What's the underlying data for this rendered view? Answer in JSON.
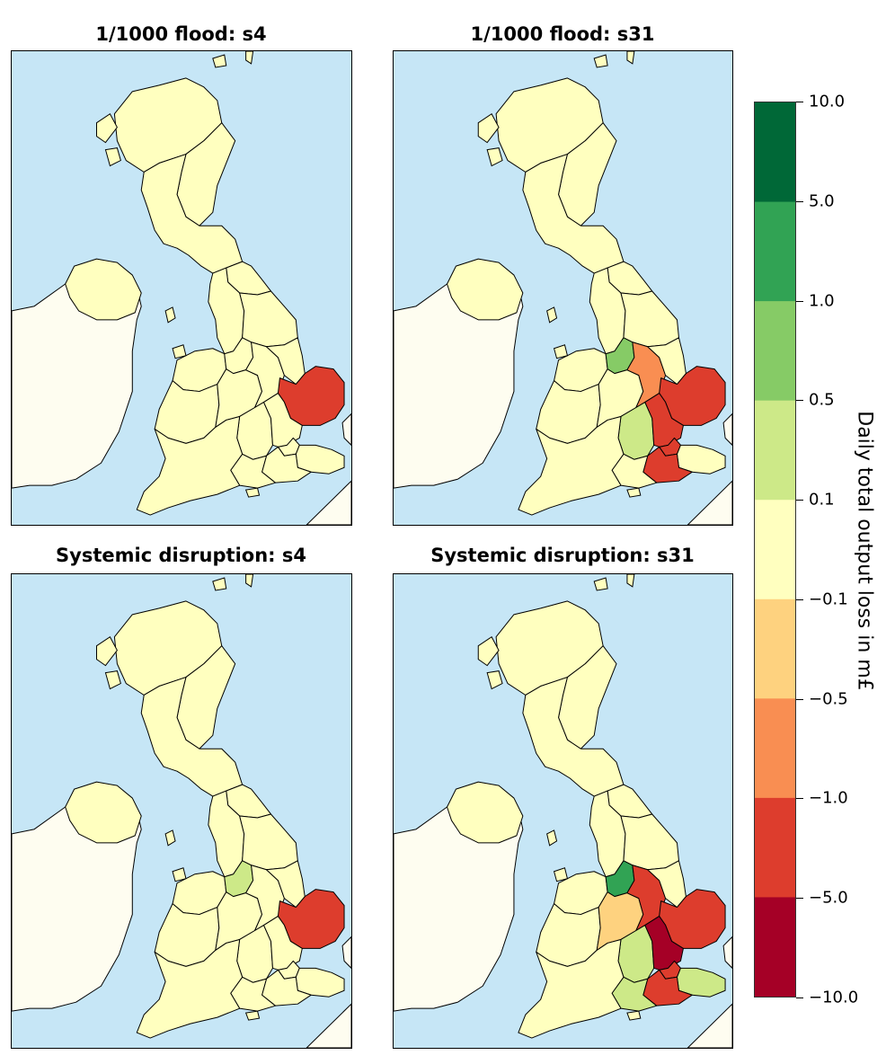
{
  "panels": [
    {
      "title": "1/1000 flood: s4",
      "regions": {
        "scotland-n": "neutral",
        "scotland-e": "neutral",
        "scotland-s": "neutral",
        "north-east": "neutral",
        "north-west": "neutral",
        "yorkshire": "neutral",
        "wales-n": "neutral",
        "cheshire": "neutral",
        "wales-s": "neutral",
        "west-midlands": "neutral",
        "east-midlands": "neutral",
        "lincolnshire": "neutral",
        "east-anglia": "loss-1-5",
        "oxford-bucks": "neutral",
        "hertford": "neutral",
        "london": "neutral",
        "kent": "neutral",
        "surrey-sussex": "neutral",
        "hampshire": "neutral",
        "south-west": "neutral",
        "northern-ireland": "neutral"
      }
    },
    {
      "title": "1/1000 flood: s31",
      "regions": {
        "scotland-n": "neutral",
        "scotland-e": "neutral",
        "scotland-s": "neutral",
        "north-east": "neutral",
        "north-west": "neutral",
        "yorkshire": "neutral",
        "wales-n": "neutral",
        "cheshire": "gain-0.5-1",
        "wales-s": "neutral",
        "west-midlands": "neutral",
        "east-midlands": "loss-0.5-1",
        "lincolnshire": "neutral",
        "east-anglia": "loss-1-5",
        "oxford-bucks": "gain-0.1-0.5",
        "hertford": "loss-1-5",
        "london": "loss-1-5",
        "kent": "neutral",
        "surrey-sussex": "loss-1-5",
        "hampshire": "neutral",
        "south-west": "neutral",
        "northern-ireland": "neutral"
      }
    },
    {
      "title": "Systemic disruption: s4",
      "regions": {
        "scotland-n": "neutral",
        "scotland-e": "neutral",
        "scotland-s": "neutral",
        "north-east": "neutral",
        "north-west": "neutral",
        "yorkshire": "neutral",
        "wales-n": "neutral",
        "cheshire": "gain-0.1-0.5",
        "wales-s": "neutral",
        "west-midlands": "neutral",
        "east-midlands": "neutral",
        "lincolnshire": "neutral",
        "east-anglia": "loss-1-5",
        "oxford-bucks": "neutral",
        "hertford": "neutral",
        "london": "neutral",
        "kent": "neutral",
        "surrey-sussex": "neutral",
        "hampshire": "neutral",
        "south-west": "neutral",
        "northern-ireland": "neutral"
      }
    },
    {
      "title": "Systemic disruption: s31",
      "regions": {
        "scotland-n": "neutral",
        "scotland-e": "neutral",
        "scotland-s": "neutral",
        "north-east": "neutral",
        "north-west": "neutral",
        "yorkshire": "neutral",
        "wales-n": "neutral",
        "cheshire": "gain-1-5",
        "wales-s": "neutral",
        "west-midlands": "loss-0.1-0.5",
        "east-midlands": "loss-1-5",
        "lincolnshire": "neutral",
        "east-anglia": "loss-1-5",
        "oxford-bucks": "gain-0.1-0.5",
        "hertford": "loss-5-10",
        "london": "loss-1-5",
        "kent": "gain-0.1-0.5",
        "surrey-sussex": "loss-1-5",
        "hampshire": "gain-0.1-0.5",
        "south-west": "neutral",
        "northern-ireland": "neutral"
      }
    }
  ],
  "classes": {
    "gain-5-10": "#006837",
    "gain-1-5": "#31a354",
    "gain-0.5-1": "#86cb66",
    "gain-0.1-0.5": "#cde988",
    "neutral": "#ffffbf",
    "loss-0.1-0.5": "#fed27f",
    "loss-0.5-1": "#f98e52",
    "loss-1-5": "#dd3d2d",
    "loss-5-10": "#a50026"
  },
  "colors": {
    "sea": "#c6e6f6",
    "ireland": "#fefdf0",
    "europe": "#fefdf0",
    "border": "#000000"
  },
  "colorbar": {
    "title": "Daily total output loss in m£",
    "ticks": [
      "10.0",
      "5.0",
      "1.0",
      "0.5",
      "0.1",
      "−0.1",
      "−0.5",
      "−1.0",
      "−5.0",
      "−10.0"
    ],
    "colors": [
      "#006837",
      "#31a354",
      "#86cb66",
      "#cde988",
      "#ffffbf",
      "#fed27f",
      "#f98e52",
      "#dd3d2d",
      "#a50026"
    ]
  }
}
